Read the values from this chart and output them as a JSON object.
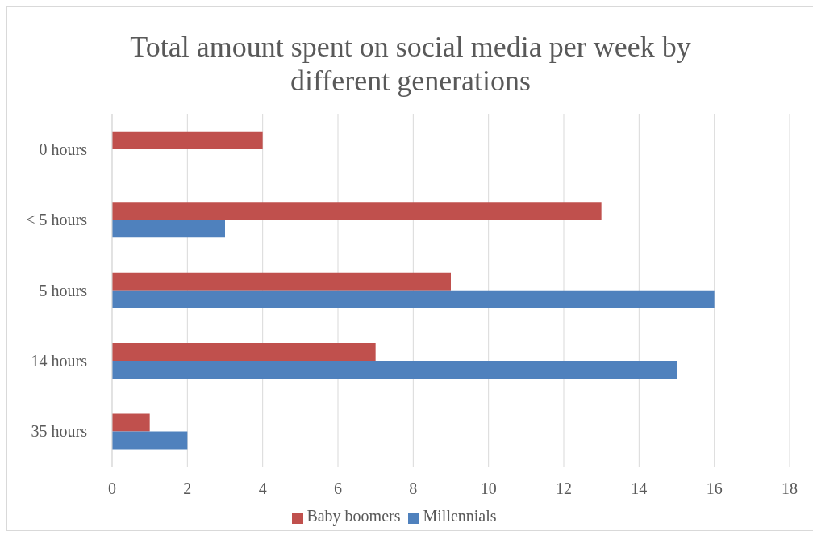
{
  "chart_data": {
    "type": "bar",
    "orientation": "horizontal",
    "title": "Total amount spent on social media per week by different generations",
    "categories": [
      "0 hours",
      "< 5 hours",
      "5 hours",
      "14 hours",
      "35 hours"
    ],
    "series": [
      {
        "name": "Baby boomers",
        "color": "#c0504d",
        "values": [
          4,
          13,
          9,
          7,
          1
        ]
      },
      {
        "name": "Millennials",
        "color": "#4f81bd",
        "values": [
          0,
          3,
          16,
          15,
          2
        ]
      }
    ],
    "xlim": [
      0,
      18
    ],
    "xticks": [
      0,
      2,
      4,
      6,
      8,
      10,
      12,
      14,
      16,
      18
    ],
    "grid": "x",
    "legend": "bottom"
  }
}
